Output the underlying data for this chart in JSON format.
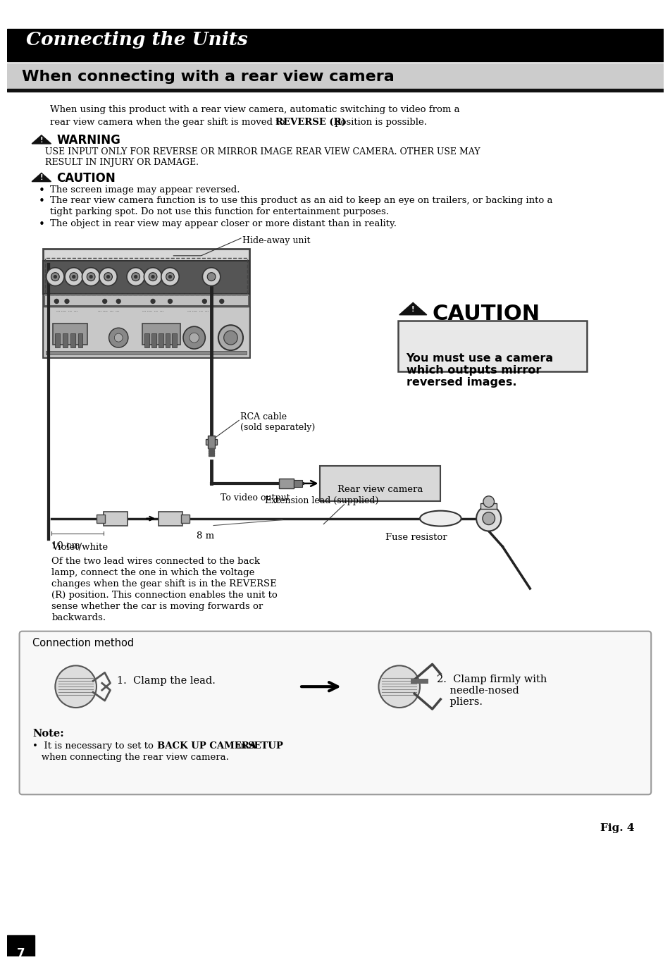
{
  "page_bg": "#ffffff",
  "header_bg": "#000000",
  "header_text": "Connecting the Units",
  "header_text_color": "#ffffff",
  "section_title": "When connecting with a rear view camera",
  "section_title_bg": "#cccccc",
  "body_line1": "When using this product with a rear view camera, automatic switching to video from a",
  "body_line2a": "rear view camera when the gear shift is moved to ",
  "body_line2b": "REVERSE (R)",
  "body_line2c": " position is possible.",
  "warning_title": "WARNING",
  "warning_line1": "USE INPUT ONLY FOR REVERSE OR MIRROR IMAGE REAR VIEW CAMERA. OTHER USE MAY",
  "warning_line2": "RESULT IN INJURY OR DAMAGE.",
  "caution_title": "CAUTION",
  "bullet1": "The screen image may appear reversed.",
  "bullet2a": "The rear view camera function is to use this product as an aid to keep an eye on trailers, or backing into a",
  "bullet2b": "tight parking spot. Do not use this function for entertainment purposes.",
  "bullet3": "The object in rear view may appear closer or more distant than in reality.",
  "label_hideaway": "Hide-away unit",
  "label_rca_line1": "RCA cable",
  "label_rca_line2": "(sold separately)",
  "label_video": "To video output",
  "label_rear_camera": "Rear view camera",
  "label_extension": "Extension lead (supplied)",
  "label_10cm": "10 cm",
  "label_8m": "8 m",
  "label_violet": "Violet/white",
  "label_fuse": "Fuse resistor",
  "desc_line1": "Of the two lead wires connected to the back",
  "desc_line2": "lamp, connect the one in which the voltage",
  "desc_line3": "changes when the gear shift is in the REVERSE",
  "desc_line4": "(R) position. This connection enables the unit to",
  "desc_line5": "sense whether the car is moving forwards or",
  "desc_line6": "backwards.",
  "caution2_title": "CAUTION",
  "caution2_line1": "You must use a camera",
  "caution2_line2": "which outputs mirror",
  "caution2_line3": "reversed images.",
  "conn_box_title": "Connection method",
  "conn_step1": "1.  Clamp the lead.",
  "conn_step2_line1": "2.  Clamp firmly with",
  "conn_step2_line2": "    needle-nosed",
  "conn_step2_line3": "    pliers.",
  "note_title": "Note:",
  "note_pre": "•  It is necessary to set to ",
  "note_bold1": "BACK UP CAMERA",
  "note_mid": " in ",
  "note_bold2": "SETUP",
  "note_line2": "   when connecting the rear view camera.",
  "fig_label": "Fig. 4",
  "page_num": "7"
}
